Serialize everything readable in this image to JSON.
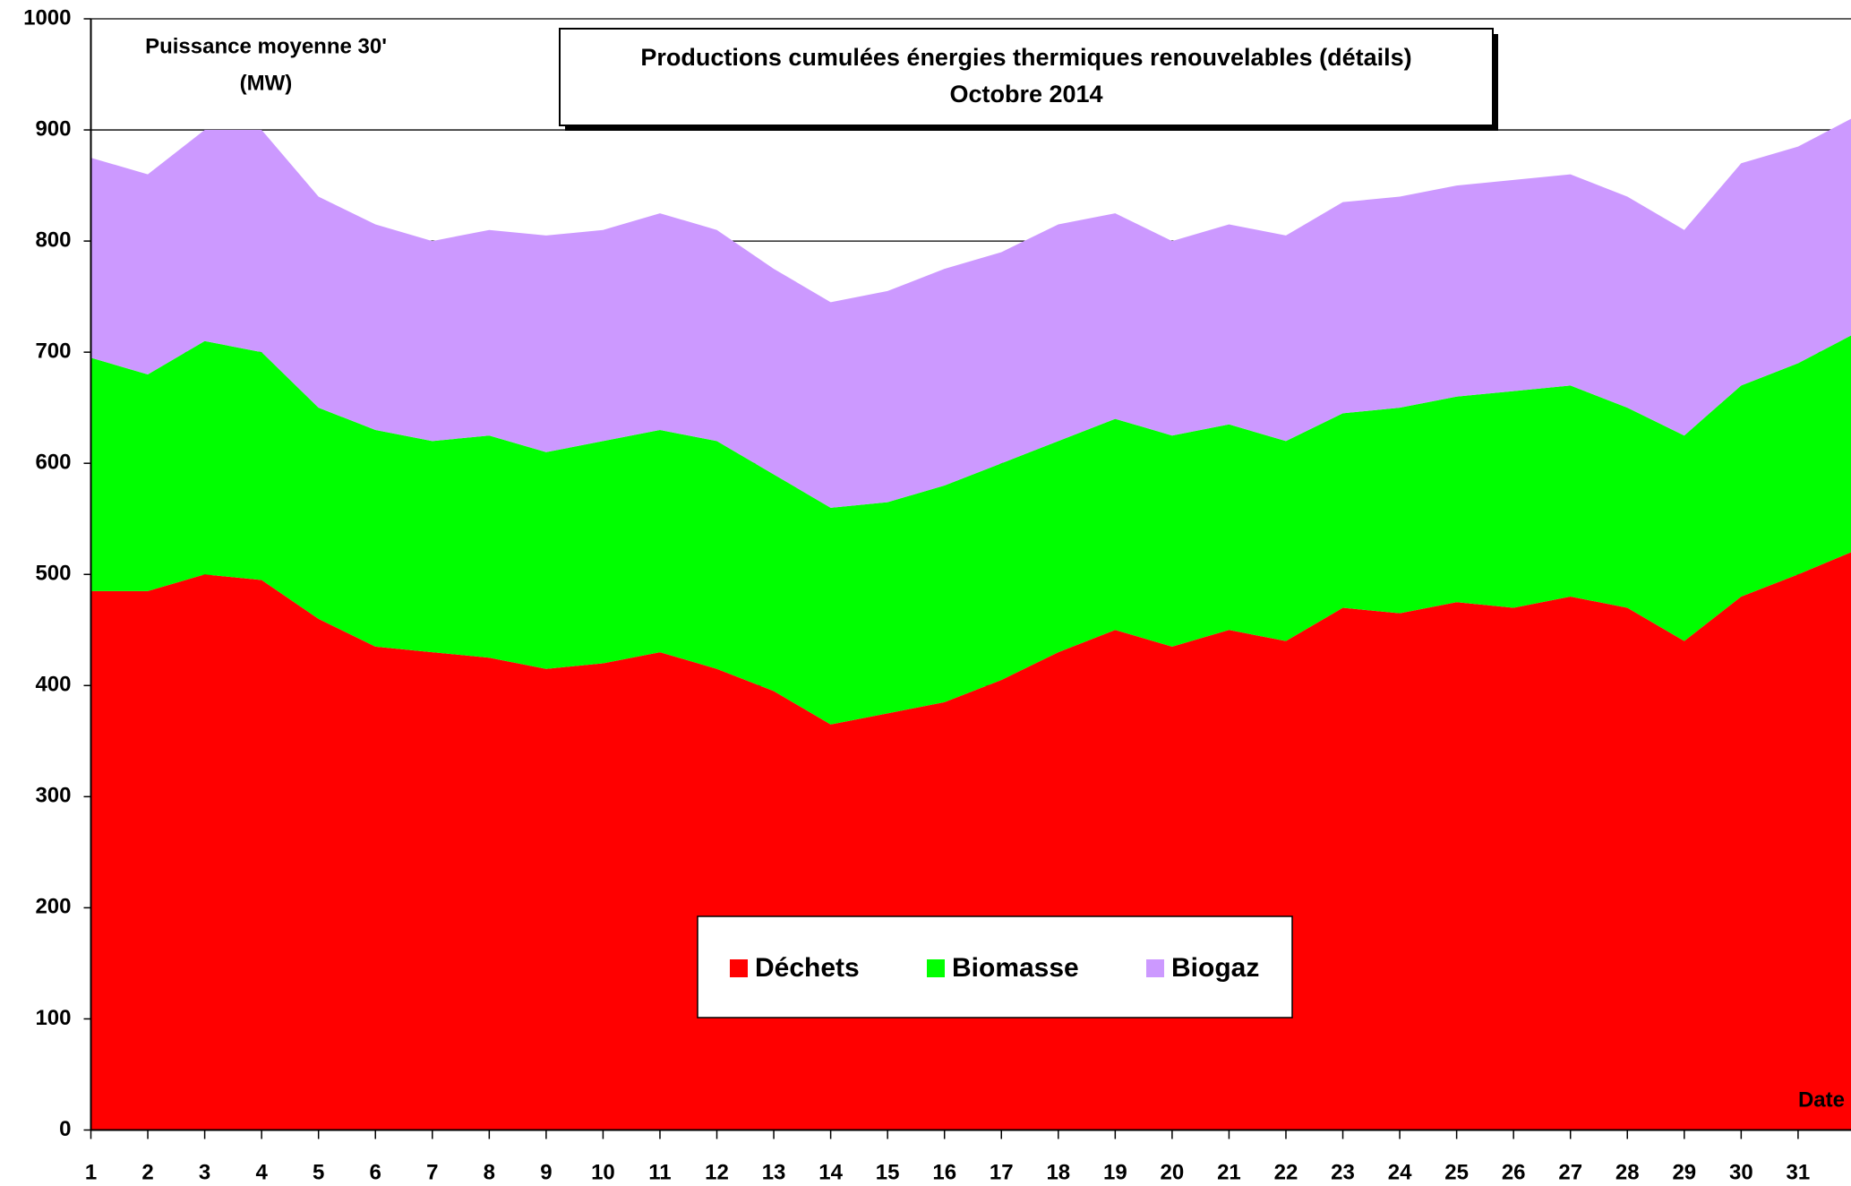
{
  "chart_data": {
    "type": "stacked_area",
    "title": [
      "Productions cumulées énergies thermiques renouvelables (détails)",
      "Octobre 2014"
    ],
    "ylabel": [
      "Puissance moyenne 30'",
      "(MW)"
    ],
    "xlabel": "Date",
    "x": [
      1,
      2,
      3,
      4,
      5,
      6,
      7,
      8,
      9,
      10,
      11,
      12,
      13,
      14,
      15,
      16,
      17,
      18,
      19,
      20,
      21,
      22,
      23,
      24,
      25,
      26,
      27,
      28,
      29,
      30,
      31,
      31.93
    ],
    "series": [
      {
        "name": "Déchets",
        "color": "#ff0000",
        "values": [
          485,
          485,
          500,
          495,
          460,
          435,
          430,
          425,
          415,
          420,
          430,
          415,
          395,
          365,
          375,
          385,
          405,
          430,
          450,
          435,
          450,
          440,
          470,
          465,
          475,
          470,
          480,
          470,
          440,
          480,
          500,
          520
        ]
      },
      {
        "name": "Biomasse",
        "color": "#00ff00",
        "values": [
          210,
          195,
          210,
          205,
          190,
          195,
          190,
          200,
          195,
          200,
          200,
          205,
          195,
          195,
          190,
          195,
          195,
          190,
          190,
          190,
          185,
          180,
          175,
          185,
          185,
          195,
          190,
          180,
          185,
          190,
          190,
          195
        ]
      },
      {
        "name": "Biogaz",
        "color": "#cc99ff",
        "values": [
          180,
          180,
          190,
          200,
          190,
          185,
          180,
          185,
          195,
          190,
          195,
          190,
          185,
          185,
          190,
          195,
          190,
          195,
          185,
          175,
          180,
          185,
          190,
          190,
          190,
          190,
          190,
          190,
          185,
          200,
          195,
          195
        ]
      }
    ],
    "xlim": [
      1,
      31.93
    ],
    "xticks": [
      1,
      2,
      3,
      4,
      5,
      6,
      7,
      8,
      9,
      10,
      11,
      12,
      13,
      14,
      15,
      16,
      17,
      18,
      19,
      20,
      21,
      22,
      23,
      24,
      25,
      26,
      27,
      28,
      29,
      30,
      31
    ],
    "ylim": [
      0,
      1000
    ],
    "yticks": [
      0,
      100,
      200,
      300,
      400,
      500,
      600,
      700,
      800,
      900,
      1000
    ],
    "grid": true
  }
}
